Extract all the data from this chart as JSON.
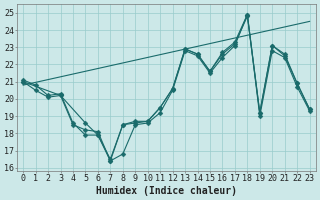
{
  "xlabel": "Humidex (Indice chaleur)",
  "background_color": "#cce8e8",
  "grid_color": "#99cccc",
  "line_color": "#1a6b6b",
  "xlim": [
    -0.5,
    23.5
  ],
  "ylim": [
    15.8,
    25.5
  ],
  "xticks": [
    0,
    1,
    2,
    3,
    4,
    5,
    6,
    7,
    8,
    9,
    10,
    11,
    12,
    13,
    14,
    15,
    16,
    17,
    18,
    19,
    20,
    21,
    22,
    23
  ],
  "yticks": [
    16,
    17,
    18,
    19,
    20,
    21,
    22,
    23,
    24,
    25
  ],
  "line1_x": [
    0,
    1,
    2,
    3,
    4,
    5,
    6,
    7,
    8,
    9,
    10,
    11,
    12,
    13,
    14,
    15,
    16,
    17,
    18,
    19,
    20,
    21,
    22,
    23
  ],
  "line1_y": [
    21.1,
    20.8,
    20.2,
    20.3,
    18.6,
    17.9,
    17.9,
    16.5,
    18.5,
    18.7,
    18.7,
    19.5,
    20.6,
    22.9,
    22.6,
    21.6,
    22.7,
    23.3,
    24.9,
    19.2,
    23.1,
    22.6,
    20.9,
    19.4
  ],
  "line2_x": [
    0,
    1,
    2,
    3,
    4,
    5,
    6,
    7,
    8,
    9,
    10,
    11,
    12,
    13,
    14,
    15,
    16,
    17,
    18,
    19,
    20,
    21,
    22,
    23
  ],
  "line2_y": [
    21.0,
    20.5,
    20.1,
    20.2,
    18.5,
    18.2,
    18.1,
    16.4,
    16.8,
    18.5,
    18.6,
    19.2,
    20.5,
    22.8,
    22.5,
    21.5,
    22.4,
    23.1,
    24.9,
    19.0,
    22.8,
    22.4,
    20.7,
    19.3
  ],
  "line3_x": [
    0,
    3,
    5,
    6,
    7,
    8,
    9,
    10,
    11,
    12,
    13,
    14,
    15,
    16,
    17,
    18,
    19,
    20,
    21,
    22,
    23
  ],
  "line3_y": [
    21.0,
    20.2,
    18.6,
    17.9,
    16.4,
    18.5,
    18.6,
    18.7,
    19.5,
    20.6,
    22.9,
    22.6,
    21.6,
    22.6,
    23.2,
    24.8,
    19.2,
    23.1,
    22.5,
    20.9,
    19.4
  ],
  "line4_x": [
    0,
    23
  ],
  "line4_y": [
    20.8,
    24.5
  ],
  "xlabel_fontsize": 7,
  "tick_fontsize": 6
}
